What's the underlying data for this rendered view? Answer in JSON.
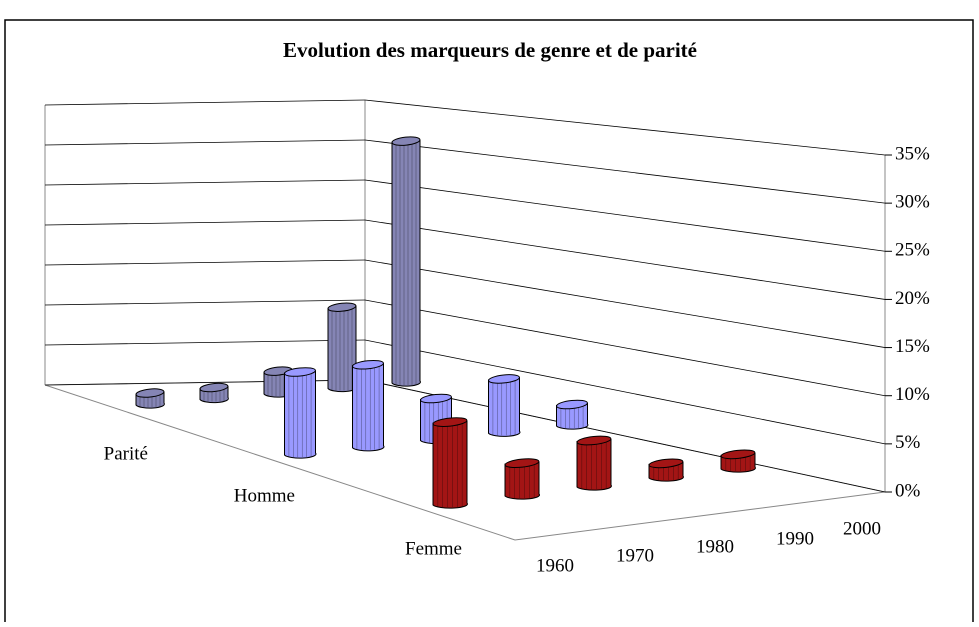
{
  "chart_data": {
    "type": "bar3d",
    "title": "Evolution des marqueurs de genre et de parité",
    "categories": [
      "1960",
      "1970",
      "1980",
      "1990",
      "2000"
    ],
    "series": [
      {
        "name": "Parité",
        "color": "#8585b5",
        "values": [
          1.5,
          1.5,
          3,
          11,
          33
        ]
      },
      {
        "name": "Homme",
        "color": "#9999ff",
        "values": [
          10,
          10,
          5,
          6.5,
          2.5
        ]
      },
      {
        "name": "Femme",
        "color": "#a31515",
        "values": [
          9,
          3.5,
          5,
          1.5,
          1.5
        ]
      }
    ],
    "ylim": [
      0,
      35
    ],
    "yticks": [
      {
        "value": 0,
        "label": "0%"
      },
      {
        "value": 5,
        "label": "5%"
      },
      {
        "value": 10,
        "label": "10%"
      },
      {
        "value": 15,
        "label": "15%"
      },
      {
        "value": 20,
        "label": "20%"
      },
      {
        "value": 25,
        "label": "25%"
      },
      {
        "value": 30,
        "label": "30%"
      },
      {
        "value": 35,
        "label": "35%"
      }
    ],
    "grid": true
  }
}
